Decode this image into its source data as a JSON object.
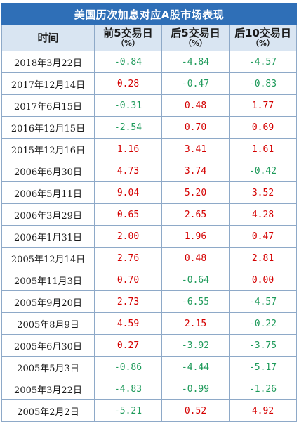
{
  "table": {
    "title": "美国历次加息对应A股市场表现",
    "headers": [
      {
        "main": "时间",
        "sub": ""
      },
      {
        "main": "前5交易日",
        "sub": "（%）"
      },
      {
        "main": "后5交易日",
        "sub": "（%）"
      },
      {
        "main": "后10交易日",
        "sub": "（%）"
      }
    ],
    "colors": {
      "positive": "#d40000",
      "negative": "#1e9a5a",
      "zero": "#d40000",
      "title_bg": "#2f6fb7",
      "header_bg": "#d9e5f2",
      "border": "#8ea9c8"
    },
    "rows": [
      {
        "date": "2018年3月22日",
        "pre5": "-0.84",
        "post5": "-4.84",
        "post10": "-4.57"
      },
      {
        "date": "2017年12月14日",
        "pre5": "0.28",
        "post5": "-0.47",
        "post10": "-0.83"
      },
      {
        "date": "2017年6月15日",
        "pre5": "-0.31",
        "post5": "0.48",
        "post10": "1.77"
      },
      {
        "date": "2016年12月15日",
        "pre5": "-2.54",
        "post5": "0.70",
        "post10": "0.69"
      },
      {
        "date": "2015年12月16日",
        "pre5": "1.16",
        "post5": "3.41",
        "post10": "1.61"
      },
      {
        "date": "2006年6月30日",
        "pre5": "4.73",
        "post5": "3.74",
        "post10": "-0.42"
      },
      {
        "date": "2006年5月11日",
        "pre5": "9.04",
        "post5": "5.20",
        "post10": "3.52"
      },
      {
        "date": "2006年3月29日",
        "pre5": "0.65",
        "post5": "2.65",
        "post10": "4.28"
      },
      {
        "date": "2006年1月31日",
        "pre5": "2.00",
        "post5": "1.96",
        "post10": "0.47"
      },
      {
        "date": "2005年12月14日",
        "pre5": "2.76",
        "post5": "0.48",
        "post10": "2.81"
      },
      {
        "date": "2005年11月3日",
        "pre5": "0.70",
        "post5": "-0.64",
        "post10": "0.00"
      },
      {
        "date": "2005年9月20日",
        "pre5": "2.73",
        "post5": "-6.55",
        "post10": "-4.57"
      },
      {
        "date": "2005年8月9日",
        "pre5": "4.59",
        "post5": "2.15",
        "post10": "-0.22"
      },
      {
        "date": "2005年6月30日",
        "pre5": "0.27",
        "post5": "-3.92",
        "post10": "-3.75"
      },
      {
        "date": "2005年5月3日",
        "pre5": "-0.86",
        "post5": "-4.44",
        "post10": "-5.17"
      },
      {
        "date": "2005年3月22日",
        "pre5": "-4.83",
        "post5": "-0.99",
        "post10": "-1.26"
      },
      {
        "date": "2005年2月2日",
        "pre5": "-5.21",
        "post5": "0.52",
        "post10": "4.92"
      }
    ]
  }
}
